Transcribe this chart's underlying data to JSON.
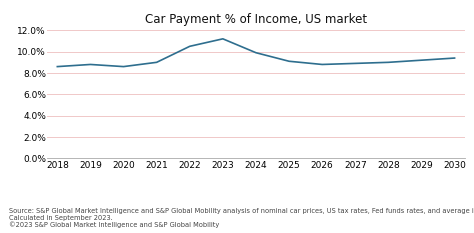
{
  "title": "Car Payment % of Income, US market",
  "x_years": [
    2018,
    2019,
    2020,
    2021,
    2022,
    2023,
    2024,
    2025,
    2026,
    2027,
    2028,
    2029,
    2030
  ],
  "y_values": [
    0.086,
    0.088,
    0.086,
    0.09,
    0.105,
    0.112,
    0.099,
    0.091,
    0.088,
    0.089,
    0.09,
    0.092,
    0.094
  ],
  "ylim": [
    0.0,
    0.12
  ],
  "yticks": [
    0.0,
    0.02,
    0.04,
    0.06,
    0.08,
    0.1,
    0.12
  ],
  "line_color": "#2e6e8e",
  "line_width": 1.2,
  "grid_color": "#f0c8c8",
  "background_color": "#ffffff",
  "source_line1": "Source: S&P Global Market Intelligence and S&P Global Mobility analysis of nominal car prices, US tax rates, Fed funds rates, and average income.",
  "source_line2": "Calculated in September 2023.",
  "source_line3": "©2023 S&P Global Market Intelligence and S&P Global Mobility",
  "source_fontsize": 4.8,
  "title_fontsize": 8.5,
  "tick_fontsize": 6.5
}
